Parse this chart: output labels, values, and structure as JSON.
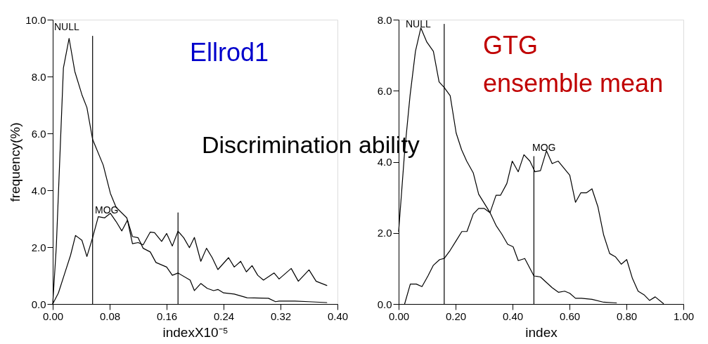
{
  "chart_data": [
    {
      "type": "line",
      "xlabel": "indexX10⁻⁵",
      "ylabel": "frequency(%)",
      "xlim": [
        0,
        0.4
      ],
      "ylim": [
        0,
        10
      ],
      "xticks": [
        {
          "value": 0,
          "label": "0.00"
        },
        {
          "value": 0.08,
          "label": "0.08"
        },
        {
          "value": 0.16,
          "label": "0.16"
        },
        {
          "value": 0.24,
          "label": "0.24"
        },
        {
          "value": 0.32,
          "label": "0.32"
        },
        {
          "value": 0.4,
          "label": "0.40"
        }
      ],
      "yticks": [
        {
          "value": 0,
          "label": "0.0"
        },
        {
          "value": 2,
          "label": "2.0"
        },
        {
          "value": 4,
          "label": "4.0"
        },
        {
          "value": 6,
          "label": "6.0"
        },
        {
          "value": 8,
          "label": "8.0"
        },
        {
          "value": 10,
          "label": "10.0"
        }
      ],
      "grid": false,
      "marker": "none",
      "line_style": "solid",
      "series": [
        {
          "color": "#000000",
          "x": [
            0,
            0.005,
            0.015,
            0.023,
            0.031,
            0.041,
            0.048,
            0.056,
            0.071,
            0.081,
            0.089,
            0.104,
            0.112,
            0.12,
            0.127,
            0.137,
            0.145,
            0.16,
            0.168,
            0.176,
            0.193,
            0.199,
            0.208,
            0.217,
            0.226,
            0.232,
            0.24,
            0.255,
            0.273,
            0.303,
            0.313,
            0.318,
            0.34,
            0.36,
            0.385
          ],
          "values": [
            0,
            2.0,
            8.3,
            9.34,
            8.18,
            7.36,
            6.91,
            5.79,
            4.88,
            3.89,
            3.4,
            3.03,
            2.37,
            2.33,
            1.96,
            1.83,
            1.46,
            1.3,
            1.01,
            1.09,
            0.84,
            0.47,
            0.72,
            0.55,
            0.47,
            0.51,
            0.39,
            0.35,
            0.22,
            0.2,
            0.08,
            0.1,
            0.1,
            0.08,
            0.05
          ]
        },
        {
          "color": "#000000",
          "x": [
            0,
            0.008,
            0.017,
            0.025,
            0.032,
            0.041,
            0.048,
            0.056,
            0.064,
            0.073,
            0.081,
            0.089,
            0.097,
            0.105,
            0.112,
            0.12,
            0.127,
            0.137,
            0.143,
            0.153,
            0.16,
            0.168,
            0.176,
            0.184,
            0.192,
            0.199,
            0.208,
            0.216,
            0.224,
            0.232,
            0.247,
            0.255,
            0.264,
            0.272,
            0.28,
            0.288,
            0.296,
            0.311,
            0.318,
            0.335,
            0.345,
            0.36,
            0.37,
            0.385
          ],
          "values": [
            0,
            0.39,
            1.09,
            1.71,
            2.41,
            2.24,
            1.67,
            2.33,
            3.07,
            3.03,
            3.19,
            2.9,
            2.57,
            2.95,
            2.12,
            2.16,
            2.08,
            2.53,
            2.51,
            2.2,
            2.48,
            2.04,
            2.56,
            2.33,
            1.98,
            2.34,
            1.5,
            1.96,
            1.63,
            1.21,
            1.63,
            1.3,
            1.5,
            1.13,
            1.35,
            1.01,
            0.84,
            1.09,
            0.88,
            1.25,
            0.8,
            1.2,
            0.8,
            0.65
          ]
        },
        {
          "color": "#000000",
          "x": [
            0.056,
            0.056
          ],
          "values": [
            0,
            9.42
          ]
        },
        {
          "color": "#000000",
          "x": [
            0.176,
            0.176
          ],
          "values": [
            0,
            3.21
          ]
        }
      ],
      "annotations": [
        "Ellrod1",
        "Discrimination ability",
        "NULL",
        "MOG"
      ]
    },
    {
      "type": "line",
      "xlabel": "index",
      "xlim": [
        0,
        1
      ],
      "ylim": [
        0,
        8
      ],
      "xticks": [
        {
          "value": 0,
          "label": "0.00"
        },
        {
          "value": 0.2,
          "label": "0.20"
        },
        {
          "value": 0.4,
          "label": "0.40"
        },
        {
          "value": 0.6,
          "label": "0.60"
        },
        {
          "value": 0.8,
          "label": "0.80"
        },
        {
          "value": 1,
          "label": "1.00"
        }
      ],
      "yticks": [
        {
          "value": 0,
          "label": "0.0"
        },
        {
          "value": 2,
          "label": "2.0"
        },
        {
          "value": 4,
          "label": "4.0"
        },
        {
          "value": 6,
          "label": "6.0"
        },
        {
          "value": 8,
          "label": "8.0"
        }
      ],
      "grid": false,
      "marker": "none",
      "line_style": "solid",
      "series": [
        {
          "color": "#000000",
          "x": [
            0,
            0.021,
            0.04,
            0.059,
            0.078,
            0.099,
            0.122,
            0.142,
            0.16,
            0.181,
            0.202,
            0.221,
            0.239,
            0.262,
            0.281,
            0.321,
            0.342,
            0.362,
            0.383,
            0.402,
            0.42,
            0.443,
            0.475,
            0.498,
            0.539,
            0.561,
            0.583,
            0.601,
            0.621,
            0.642,
            0.679,
            0.72,
            0.765
          ],
          "values": [
            2.04,
            4.28,
            5.86,
            7.11,
            7.77,
            7.37,
            7.11,
            6.25,
            6.09,
            5.86,
            4.81,
            4.34,
            4.02,
            3.69,
            3.09,
            2.57,
            2.21,
            1.97,
            1.68,
            1.61,
            1.22,
            1.28,
            0.79,
            0.76,
            0.46,
            0.33,
            0.36,
            0.3,
            0.16,
            0.16,
            0.13,
            0.05,
            0.03
          ]
        },
        {
          "color": "#000000",
          "x": [
            0.021,
            0.041,
            0.062,
            0.082,
            0.103,
            0.122,
            0.144,
            0.16,
            0.181,
            0.202,
            0.222,
            0.24,
            0.262,
            0.281,
            0.3,
            0.321,
            0.342,
            0.358,
            0.38,
            0.399,
            0.42,
            0.44,
            0.461,
            0.479,
            0.498,
            0.519,
            0.539,
            0.56,
            0.601,
            0.621,
            0.64,
            0.66,
            0.679,
            0.7,
            0.72,
            0.741,
            0.761,
            0.782,
            0.801,
            0.821,
            0.841,
            0.863,
            0.881,
            0.901,
            0.93
          ],
          "values": [
            0,
            0.56,
            0.56,
            0.49,
            0.79,
            1.09,
            1.25,
            1.28,
            1.51,
            1.78,
            2.04,
            2.04,
            2.53,
            2.69,
            2.69,
            2.57,
            3.06,
            3.06,
            3.39,
            4.02,
            3.72,
            4.2,
            4.02,
            3.72,
            3.75,
            4.31,
            3.95,
            4.02,
            3.62,
            2.86,
            3.13,
            3.13,
            3.24,
            2.73,
            1.94,
            1.42,
            1.33,
            1.12,
            1.25,
            0.72,
            0.36,
            0.25,
            0.1,
            0.2,
            0.01
          ]
        },
        {
          "color": "#000000",
          "x": [
            0.16,
            0.16
          ],
          "values": [
            0,
            7.87
          ]
        },
        {
          "color": "#000000",
          "x": [
            0.475,
            0.475
          ],
          "values": [
            0,
            4.15
          ]
        }
      ],
      "annotations": [
        "GTG\nensemble mean",
        "NULL",
        "MOG"
      ]
    }
  ]
}
